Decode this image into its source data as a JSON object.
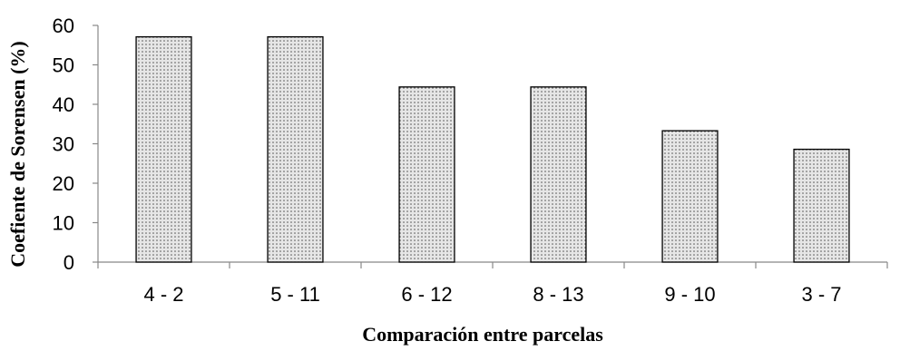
{
  "chart_data": {
    "type": "bar",
    "title": "",
    "xlabel": "Comparación entre parcelas",
    "ylabel": "Coefiente de Sorensen (%)",
    "categories": [
      "4 - 2",
      "5 - 11",
      "6 - 12",
      "8 - 13",
      "9 - 10",
      "3 - 7"
    ],
    "values": [
      57.1,
      57.1,
      44.4,
      44.4,
      33.3,
      28.6
    ],
    "ylim": [
      0,
      60
    ],
    "yticks": [
      0,
      10,
      20,
      30,
      40,
      50,
      60
    ],
    "grid": false,
    "legend": "none",
    "bar_fill": "#e6e6e6",
    "bar_pattern_color": "#555555",
    "bar_stroke": "#000000",
    "axis_color": "#888888"
  }
}
